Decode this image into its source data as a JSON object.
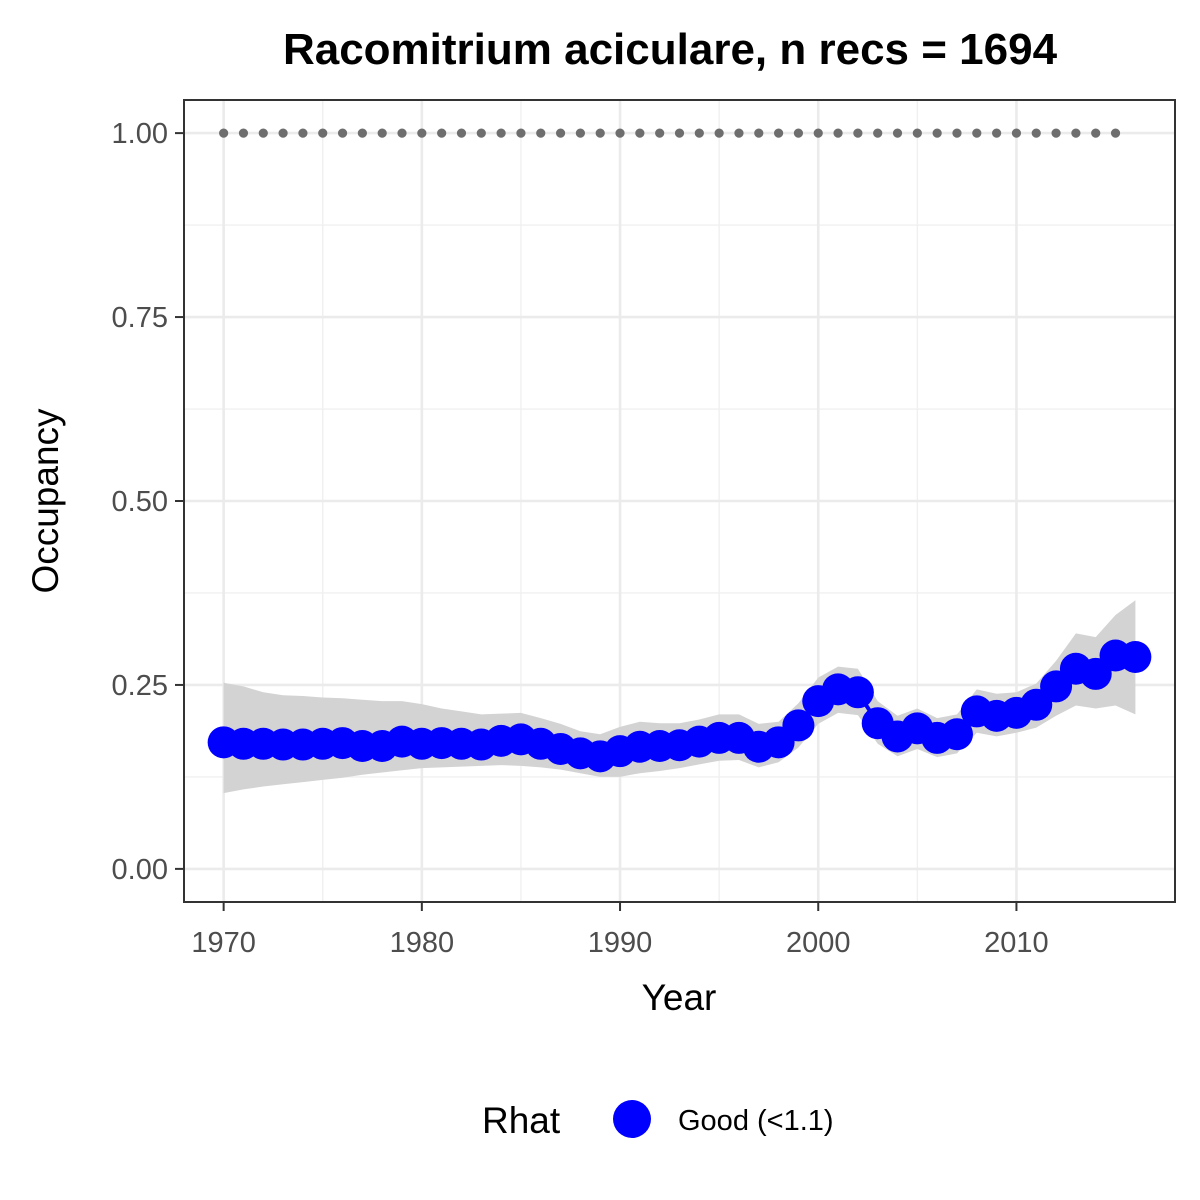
{
  "chart_data": {
    "type": "line",
    "title": "Racomitrium aciculare, n recs = 1694",
    "xlabel": "Year",
    "ylabel": "Occupancy",
    "xlim": [
      1968,
      2018
    ],
    "ylim": [
      -0.045,
      1.045
    ],
    "x_ticks": [
      1970,
      1980,
      1990,
      2000,
      2010
    ],
    "x_tick_labels": [
      "1970",
      "1980",
      "1990",
      "2000",
      "2010"
    ],
    "y_ticks": [
      0,
      0.25,
      0.5,
      0.75,
      1.0
    ],
    "y_tick_labels": [
      "0.00",
      "0.25",
      "0.50",
      "0.75",
      "1.00"
    ],
    "grid": true,
    "legend": {
      "title": "Rhat",
      "position": "bottom",
      "entries": [
        {
          "label": "Good (<1.1)",
          "color": "#0000ff"
        }
      ]
    },
    "series": [
      {
        "name": "Good (<1.1)",
        "color": "#0000ff",
        "x": [
          1970,
          1971,
          1972,
          1973,
          1974,
          1975,
          1976,
          1977,
          1978,
          1979,
          1980,
          1981,
          1982,
          1983,
          1984,
          1985,
          1986,
          1987,
          1988,
          1989,
          1990,
          1991,
          1992,
          1993,
          1994,
          1995,
          1996,
          1997,
          1998,
          1999,
          2000,
          2001,
          2002,
          2003,
          2004,
          2005,
          2006,
          2007,
          2008,
          2009,
          2010,
          2011,
          2012,
          2013,
          2014,
          2015,
          2016
        ],
        "y": [
          0.172,
          0.17,
          0.17,
          0.169,
          0.169,
          0.17,
          0.171,
          0.167,
          0.167,
          0.173,
          0.17,
          0.171,
          0.17,
          0.169,
          0.174,
          0.176,
          0.17,
          0.163,
          0.157,
          0.153,
          0.16,
          0.166,
          0.167,
          0.168,
          0.173,
          0.178,
          0.178,
          0.166,
          0.172,
          0.195,
          0.228,
          0.244,
          0.24,
          0.198,
          0.18,
          0.191,
          0.178,
          0.183,
          0.214,
          0.208,
          0.212,
          0.223,
          0.248,
          0.272,
          0.265,
          0.29,
          0.288
        ]
      }
    ],
    "ci_band": {
      "color": "#d3d3d3",
      "lower": [
        0.103,
        0.108,
        0.112,
        0.115,
        0.118,
        0.121,
        0.124,
        0.128,
        0.131,
        0.134,
        0.137,
        0.138,
        0.139,
        0.14,
        0.141,
        0.14,
        0.138,
        0.135,
        0.13,
        0.125,
        0.125,
        0.13,
        0.133,
        0.137,
        0.142,
        0.147,
        0.148,
        0.138,
        0.145,
        0.165,
        0.197,
        0.212,
        0.209,
        0.17,
        0.153,
        0.163,
        0.152,
        0.157,
        0.185,
        0.18,
        0.185,
        0.192,
        0.208,
        0.222,
        0.218,
        0.222,
        0.21
      ],
      "upper": [
        0.253,
        0.248,
        0.24,
        0.236,
        0.235,
        0.233,
        0.232,
        0.23,
        0.228,
        0.228,
        0.224,
        0.218,
        0.214,
        0.21,
        0.211,
        0.212,
        0.205,
        0.197,
        0.187,
        0.183,
        0.193,
        0.2,
        0.198,
        0.198,
        0.203,
        0.21,
        0.21,
        0.197,
        0.2,
        0.225,
        0.26,
        0.275,
        0.272,
        0.228,
        0.208,
        0.218,
        0.205,
        0.21,
        0.244,
        0.238,
        0.24,
        0.252,
        0.283,
        0.32,
        0.315,
        0.345,
        0.365
      ]
    },
    "reference_line": {
      "y": 1.0,
      "x": [
        1970,
        1971,
        1972,
        1973,
        1974,
        1975,
        1976,
        1977,
        1978,
        1979,
        1980,
        1981,
        1982,
        1983,
        1984,
        1985,
        1986,
        1987,
        1988,
        1989,
        1990,
        1991,
        1992,
        1993,
        1994,
        1995,
        1996,
        1997,
        1998,
        1999,
        2000,
        2001,
        2002,
        2003,
        2004,
        2005,
        2006,
        2007,
        2008,
        2009,
        2010,
        2011,
        2012,
        2013,
        2014,
        2015
      ],
      "color": "#6e6e6e"
    }
  }
}
